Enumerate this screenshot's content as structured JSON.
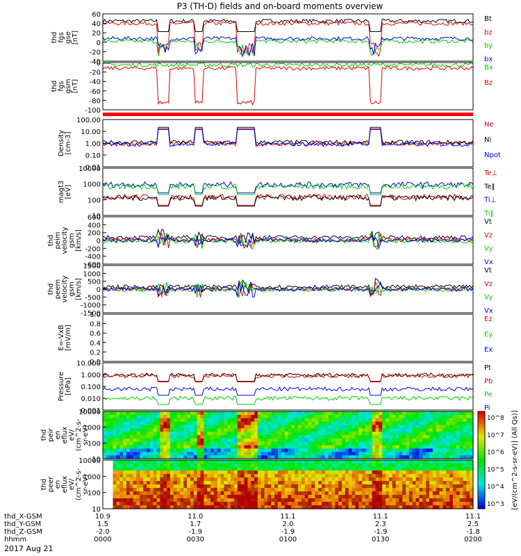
{
  "title": "P3 (TH-D) fields and on-board moments overview",
  "date": "2017 Aug 21",
  "colors": {
    "black": "#000000",
    "red": "#dd0000",
    "green": "#00cc00",
    "blue": "#0000dd",
    "bar": "#ff0000"
  },
  "chart_data": [
    {
      "id": "fgs_gse",
      "type": "line",
      "ylabel": [
        "thd",
        "fgs",
        "gse",
        "[nT]"
      ],
      "ylim": [
        -40,
        60
      ],
      "yticks": [
        "-40",
        "-20",
        "0",
        "20",
        "40",
        "60"
      ],
      "legend": [
        {
          "label": "Bt",
          "color": "black"
        },
        {
          "label": "bz",
          "color": "red"
        },
        {
          "label": "by",
          "color": "green"
        },
        {
          "label": "bx",
          "color": "blue"
        }
      ],
      "series": [
        {
          "name": "Bt",
          "base": 45
        },
        {
          "name": "bz",
          "base": 40
        },
        {
          "name": "by",
          "base": 2
        },
        {
          "name": "bx",
          "base": 8
        }
      ]
    },
    {
      "id": "fgs_gsm",
      "type": "line",
      "ylabel": [
        "thd",
        "fgs",
        "gsm",
        "[nT]"
      ],
      "ylim": [
        -100,
        0
      ],
      "yticks": [
        "-100",
        "-80",
        "-60",
        "-40",
        "-20",
        "0"
      ],
      "legend": [
        {
          "label": "Bx",
          "color": "green"
        },
        {
          "label": "Bz",
          "color": "red"
        }
      ],
      "series": [
        {
          "name": "Bx",
          "base": -5
        },
        {
          "name": "Bz",
          "base": -12
        }
      ]
    },
    {
      "id": "density",
      "type": "line",
      "ylabel": [
        "Density",
        "[cm-3]"
      ],
      "ylog": true,
      "ylim": [
        0.01,
        100
      ],
      "yticks": [
        "0.01",
        "0.10",
        "1.00",
        "10.00",
        "100.00"
      ],
      "legend": [
        {
          "label": "Ne",
          "color": "red"
        },
        {
          "label": "Ni",
          "color": "black"
        },
        {
          "label": "Npot",
          "color": "blue"
        }
      ],
      "series": [
        {
          "name": "Ne",
          "base": 0.9
        },
        {
          "name": "Ni",
          "base": 1.2
        },
        {
          "name": "Npot",
          "base": 0.8
        }
      ]
    },
    {
      "id": "temperature",
      "type": "line",
      "ylabel": [
        "magt3",
        "[eV]"
      ],
      "ylog": true,
      "ylim": [
        10,
        10000
      ],
      "yticks": [
        "10",
        "100",
        "1000",
        "10000"
      ],
      "legend": [
        {
          "label": "Te⊥",
          "color": "red"
        },
        {
          "label": "Te‖",
          "color": "black"
        },
        {
          "label": "Ti⊥",
          "color": "blue"
        },
        {
          "label": "Ti‖",
          "color": "green"
        }
      ],
      "series": [
        {
          "name": "Te⊥",
          "base": 150
        },
        {
          "name": "Te‖",
          "base": 130
        },
        {
          "name": "Ti⊥",
          "base": 900
        },
        {
          "name": "Ti‖",
          "base": 700
        }
      ]
    },
    {
      "id": "peim_vel",
      "type": "line",
      "ylabel": [
        "thd",
        "peim",
        "velocity",
        "gsm",
        "[km/s]"
      ],
      "ylim": [
        -600,
        600
      ],
      "yticks": [
        "-600",
        "-400",
        "-200",
        "0",
        "200",
        "400",
        "600"
      ],
      "legend": [
        {
          "label": "Vt",
          "color": "black"
        },
        {
          "label": "Vz",
          "color": "red"
        },
        {
          "label": "Vy",
          "color": "green"
        },
        {
          "label": "Vx",
          "color": "blue"
        }
      ],
      "series": [
        {
          "name": "Vt",
          "base": 80
        },
        {
          "name": "Vz",
          "base": 10
        },
        {
          "name": "Vy",
          "base": -20
        },
        {
          "name": "Vx",
          "base": 5
        }
      ]
    },
    {
      "id": "peem_vel",
      "type": "line",
      "ylabel": [
        "thd",
        "peem",
        "velocity",
        "gsm",
        "[km/s]"
      ],
      "ylim": [
        -1500,
        1500
      ],
      "yticks": [
        "-1500",
        "-1000",
        "-500",
        "0",
        "500",
        "1000",
        "1500"
      ],
      "legend": [
        {
          "label": "Vt",
          "color": "black"
        },
        {
          "label": "Vz",
          "color": "red"
        },
        {
          "label": "Vy",
          "color": "green"
        },
        {
          "label": "Vx",
          "color": "blue"
        }
      ],
      "series": [
        {
          "name": "Vt",
          "base": 150
        },
        {
          "name": "Vz",
          "base": 0
        },
        {
          "name": "Vy",
          "base": -50
        },
        {
          "name": "Vx",
          "base": 0
        }
      ]
    },
    {
      "id": "efield",
      "type": "line",
      "ylabel": [
        "E=-VxB",
        "[mV/m]"
      ],
      "ylim": [
        0,
        1
      ],
      "yticks": [
        "0.0",
        "0.2",
        "0.4",
        "0.6",
        "0.8",
        "1.0"
      ],
      "legend": [
        {
          "label": "Ez",
          "color": "red"
        },
        {
          "label": "Ey",
          "color": "green"
        },
        {
          "label": "Ex",
          "color": "blue"
        }
      ],
      "series": []
    },
    {
      "id": "pressure",
      "type": "line",
      "ylabel": [
        "Pressure",
        "[nPa]"
      ],
      "ylog": true,
      "ylim": [
        0.001,
        10
      ],
      "yticks": [
        "0.001",
        "0.010",
        "0.100",
        "1.000",
        "10.000"
      ],
      "legend": [
        {
          "label": "Pt",
          "color": "black"
        },
        {
          "label": "Pb",
          "color": "red"
        },
        {
          "label": "Pe",
          "color": "green"
        },
        {
          "label": "Pi",
          "color": "blue"
        }
      ],
      "series": [
        {
          "name": "Pt",
          "base": 0.9
        },
        {
          "name": "Pb",
          "base": 0.8
        },
        {
          "name": "Pe",
          "base": 0.01
        },
        {
          "name": "Pi",
          "base": 0.06
        }
      ]
    },
    {
      "id": "peir_flux",
      "type": "heatmap",
      "ylabel": [
        "thd",
        "peir",
        "en",
        "eflux",
        "eV/",
        "(cm^2-s-",
        "sr-eV)"
      ],
      "ylog": true,
      "yticks": [
        "10",
        "100",
        "1000",
        "10000"
      ]
    },
    {
      "id": "peer_flux",
      "type": "heatmap",
      "ylabel": [
        "thd",
        "peer",
        "en",
        "eflux",
        "eV/",
        "(cm^2-s-",
        "sr-eV)"
      ],
      "ylog": true,
      "yticks": [
        "10",
        "100",
        "1000",
        "10000"
      ]
    }
  ],
  "colorbar": {
    "label": "[eV/(cm^2-s-sr-eV)] (All Qs)]",
    "ticks": [
      "10^3",
      "10^4",
      "10^5",
      "10^6",
      "10^7",
      "10^8"
    ]
  },
  "xaxis": {
    "row_labels": [
      "thd_X-GSM",
      "thd_Y-GSM",
      "thd_Z-GSM",
      "hhmm"
    ],
    "ticks": [
      {
        "x": "10.9",
        "y": "1.5",
        "z": "-2.0",
        "t": "0000"
      },
      {
        "x": "11.0",
        "y": "1.7",
        "z": "-1.9",
        "t": "0030"
      },
      {
        "x": "11.1",
        "y": "2.0",
        "z": "-1.9",
        "t": "0100"
      },
      {
        "x": "11.1",
        "y": "2.3",
        "z": "-1.9",
        "t": "0130"
      },
      {
        "x": "11.1",
        "y": "2.5",
        "z": "-1.8",
        "t": "0200"
      }
    ]
  }
}
